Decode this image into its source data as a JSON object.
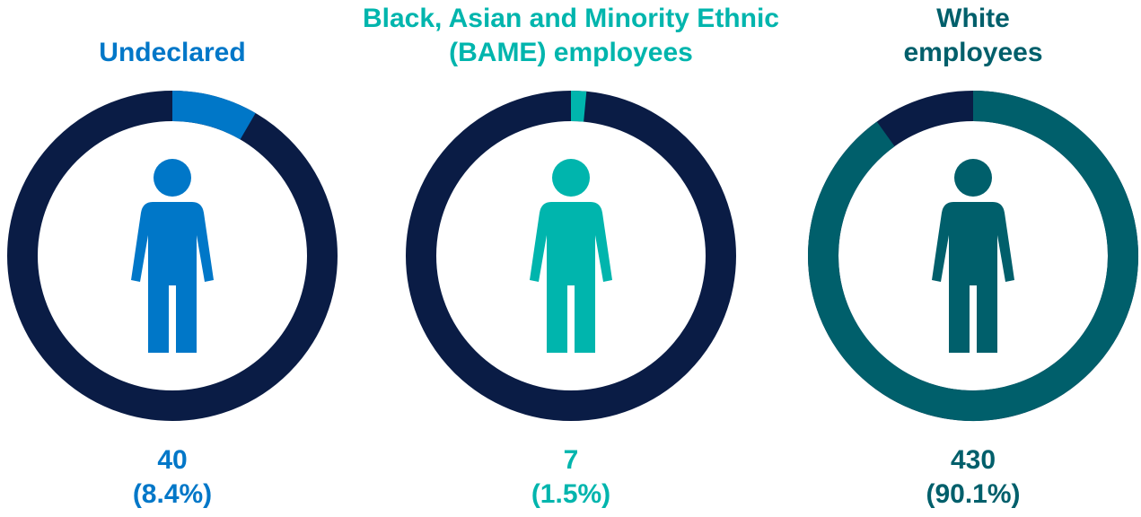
{
  "chart_data": [
    {
      "type": "donut",
      "title": [
        "Undeclared"
      ],
      "count": 40,
      "value": 8.4,
      "value_label": "(8.4%)",
      "color": "#0077c8",
      "track_color": "#0a1c45"
    },
    {
      "type": "donut",
      "title": [
        "Black, Asian and Minority Ethnic",
        "(BAME) employees"
      ],
      "count": 7,
      "value": 1.5,
      "value_label": "(1.5%)",
      "color": "#00b5ad",
      "track_color": "#0a1c45"
    },
    {
      "type": "donut",
      "title": [
        "White",
        "employees"
      ],
      "count": 430,
      "value": 90.1,
      "value_label": "(90.1%)",
      "color": "#005f6b",
      "track_color": "#0a1c45"
    }
  ]
}
